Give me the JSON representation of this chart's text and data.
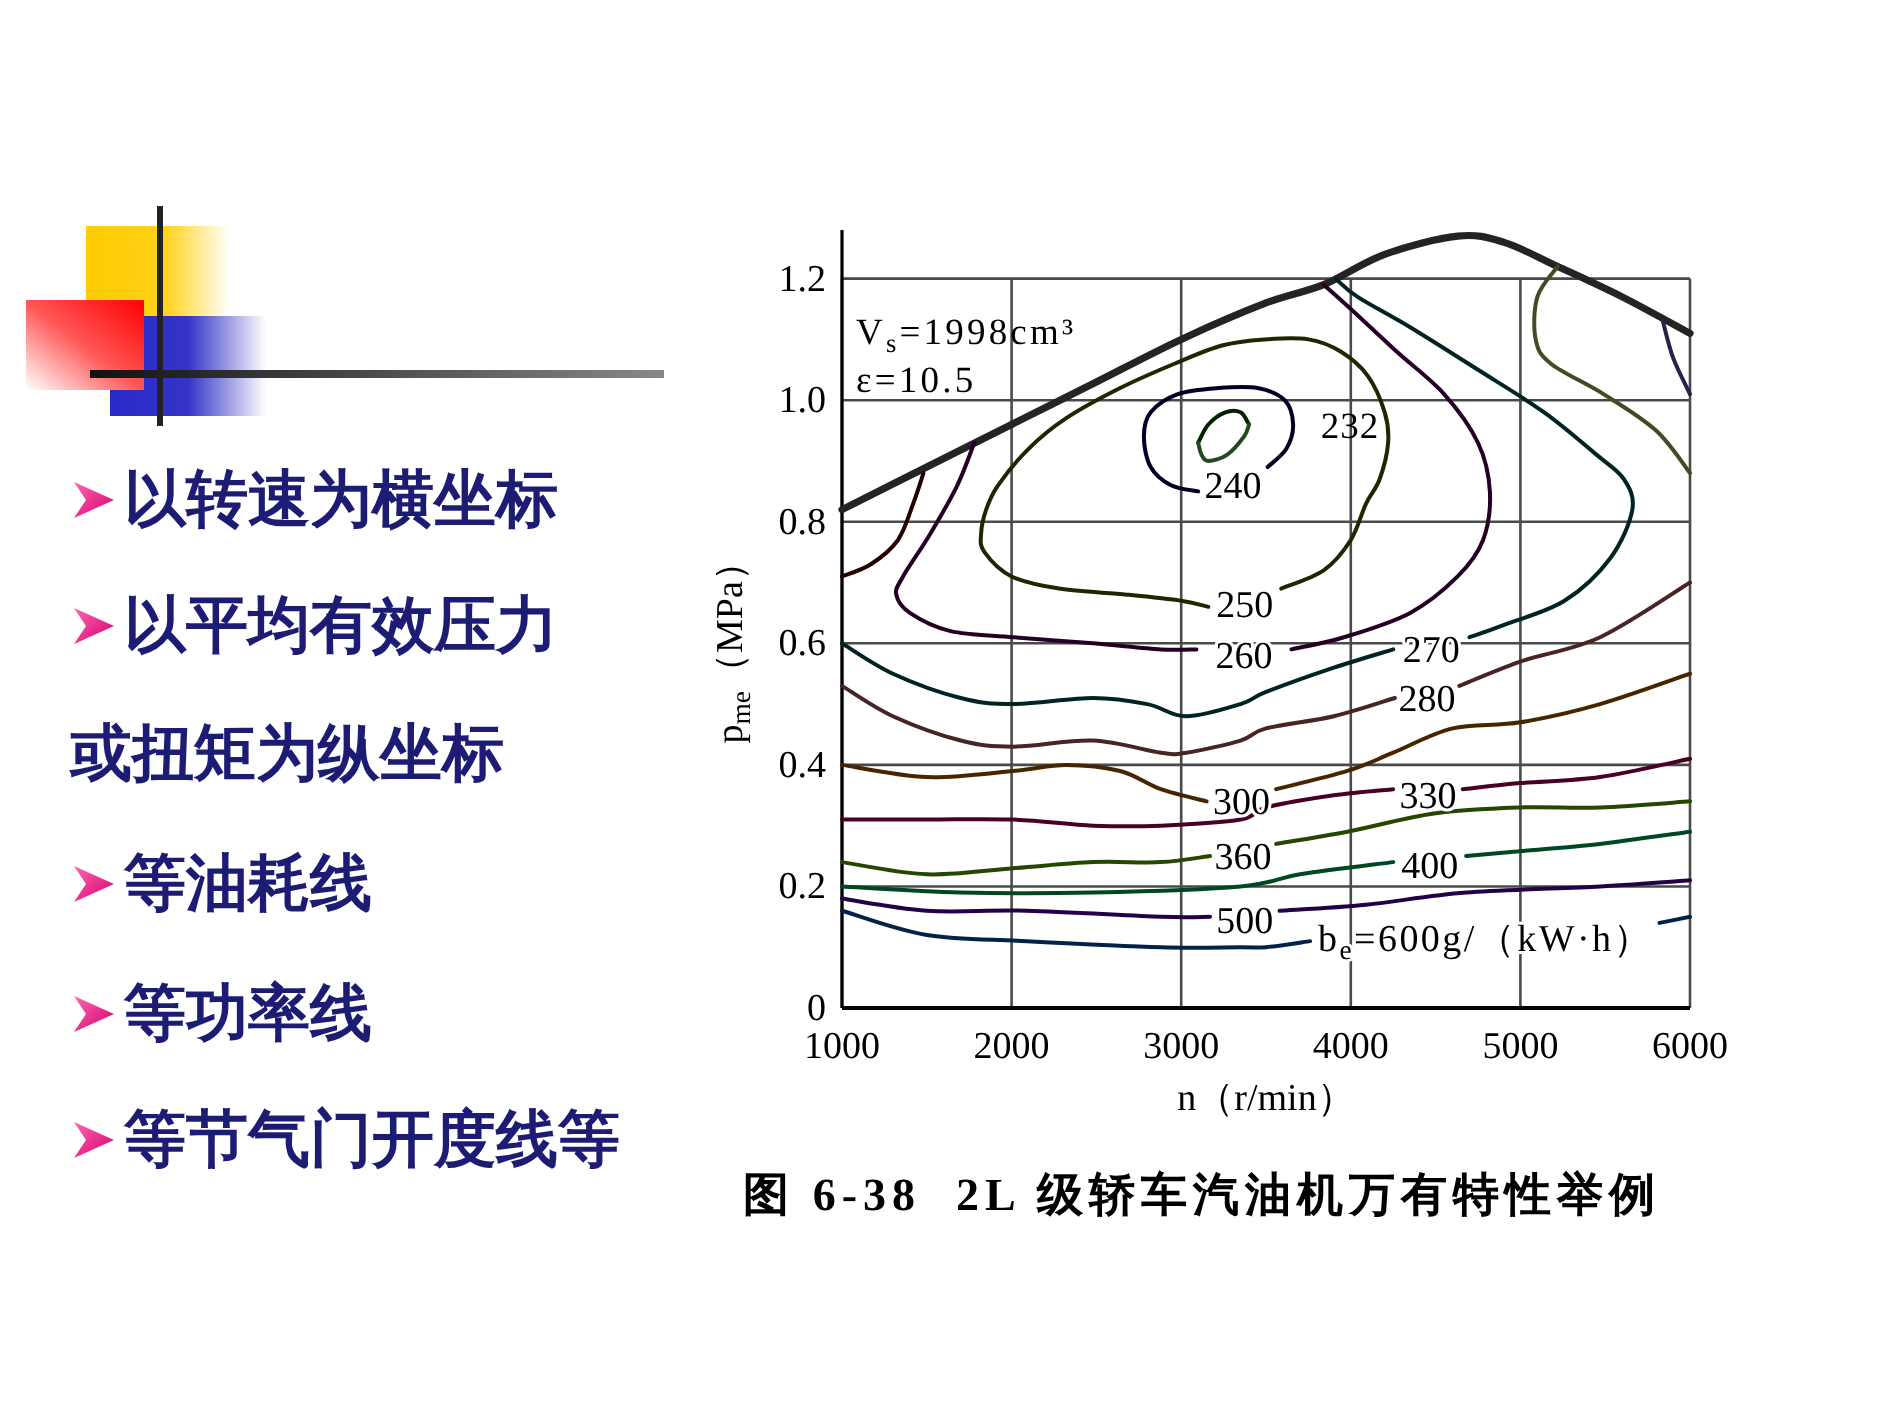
{
  "chart_data": {
    "type": "line",
    "xlabel": "n（r/min）",
    "ylabel": "p$_{me}$（MPa）",
    "xlim": [
      1000,
      6000
    ],
    "ylim": [
      0,
      1.28
    ],
    "xticks": [
      1000,
      2000,
      3000,
      4000,
      5000,
      6000
    ],
    "yticks": [
      0,
      0.2,
      0.4,
      0.6,
      0.8,
      {
        "value": 1,
        "label": "1.0"
      },
      1.2
    ],
    "grid": true,
    "annotations": [
      "以转速为横坐标",
      "以平均有效压力或扭矩为纵坐标",
      "等油耗线",
      "等功率线",
      "等节气门开度线等",
      "V$_{s}$=1998cm³",
      "ε=10.5",
      "232",
      "图 6-38  2L 级轿车汽油机万有特性举例"
    ],
    "series": [
      {
        "color": "#242424",
        "x": [
          1000,
          1500,
          2000,
          2500,
          3000,
          3500,
          3840,
          4200,
          4630,
          4900,
          5220,
          5600,
          6000
        ],
        "values": [
          0.82,
          0.89,
          0.96,
          1.03,
          1.1,
          1.16,
          1.19,
          1.24,
          1.27,
          1.26,
          1.22,
          1.17,
          1.11
        ]
      },
      {
        "color": "#240000",
        "x": [
          1480,
          1420,
          1330,
          1170,
          1000
        ],
        "values": [
          0.88,
          0.83,
          0.77,
          0.73,
          0.71
        ]
      },
      {
        "color": "#002400",
        "x": [
          3100,
          3160,
          3260,
          3350,
          3400
        ],
        "values": [
          0.93,
          0.96,
          0.98,
          0.98,
          0.96
        ]
      },
      {
        "color": "#244824",
        "x": [
          3400,
          3370,
          3270,
          3160,
          3120,
          3100
        ],
        "values": [
          0.96,
          0.94,
          0.91,
          0.9,
          0.91,
          0.93
        ]
      },
      {
        "name": "240",
        "color": "#000024",
        "x": [
          3510,
          3620,
          3660,
          3610,
          3450,
          3220,
          2980,
          2820,
          2780,
          2820,
          2940,
          3100
        ],
        "values": [
          0.89,
          0.92,
          0.96,
          1.0,
          1.02,
          1.02,
          1.01,
          0.98,
          0.94,
          0.89,
          0.86,
          0.85
        ]
      },
      {
        "name": "250",
        "color": "#242400",
        "x": [
          3590,
          3840,
          4000,
          4090,
          4170,
          4220,
          4200,
          4100,
          3940,
          3750,
          3490,
          3240,
          2960,
          2640,
          2320,
          2100,
          1920,
          1850,
          1820,
          1840,
          2000,
          2280,
          2680,
          3000,
          3160
        ],
        "values": [
          0.69,
          0.72,
          0.77,
          0.83,
          0.87,
          0.93,
          0.98,
          1.04,
          1.08,
          1.1,
          1.1,
          1.09,
          1.06,
          1.02,
          0.97,
          0.92,
          0.86,
          0.82,
          0.78,
          0.75,
          0.71,
          0.69,
          0.68,
          0.67,
          0.66
        ]
      },
      {
        "name": "260",
        "color": "#240024",
        "x": [
          1780,
          1680,
          1520,
          1360,
          1320,
          1400,
          1640,
          2010,
          2480,
          2880,
          3090,
          null,
          3650,
          3960,
          4350,
          4630,
          4780,
          4820,
          4750,
          4550,
          4270,
          4000,
          3840
        ],
        "values": [
          0.93,
          0.86,
          0.78,
          0.71,
          0.68,
          0.65,
          0.62,
          0.61,
          0.6,
          0.59,
          0.59,
          null,
          0.59,
          0.61,
          0.65,
          0.71,
          0.77,
          0.85,
          0.93,
          1.01,
          1.08,
          1.15,
          1.19
        ]
      },
      {
        "name": "270",
        "color": "#002424",
        "x": [
          1000,
          1300,
          1700,
          2010,
          2480,
          2800,
          3030,
          3350,
          3500,
          3900,
          4250,
          null,
          4700,
          4900,
          5260,
          5530,
          5660,
          5610,
          5450,
          5140,
          4750,
          4350,
          4040,
          3910
        ],
        "values": [
          0.6,
          0.55,
          0.51,
          0.5,
          0.51,
          0.5,
          0.48,
          0.5,
          0.52,
          0.56,
          0.59,
          null,
          0.61,
          0.63,
          0.67,
          0.74,
          0.82,
          0.87,
          0.91,
          0.98,
          1.05,
          1.12,
          1.17,
          1.2
        ]
      },
      {
        "name": "280",
        "color": "#482424",
        "x": [
          1000,
          1300,
          1700,
          2010,
          2480,
          2880,
          3030,
          3350,
          3500,
          3900,
          4260,
          null,
          4640,
          5000,
          5470,
          6000
        ],
        "values": [
          0.53,
          0.48,
          0.44,
          0.43,
          0.44,
          0.42,
          0.42,
          0.44,
          0.46,
          0.48,
          0.51,
          null,
          0.53,
          0.57,
          0.61,
          0.7
        ]
      },
      {
        "color": "#484824",
        "x": [
          5220,
          5100,
          5090,
          5180,
          5490,
          5800,
          6000
        ],
        "values": [
          1.22,
          1.17,
          1.1,
          1.06,
          1.01,
          0.95,
          0.88
        ]
      },
      {
        "color": "#242448",
        "x": [
          5840,
          5900,
          6000
        ],
        "values": [
          1.13,
          1.07,
          1.01
        ]
      },
      {
        "name": "300",
        "color": "#482400",
        "x": [
          1000,
          1500,
          2010,
          2320,
          2640,
          2880,
          3150,
          null,
          3560,
          3980,
          4250,
          4600,
          5000,
          5470,
          6000
        ],
        "values": [
          0.4,
          0.38,
          0.39,
          0.4,
          0.39,
          0.36,
          0.34,
          null,
          0.36,
          0.39,
          0.42,
          0.46,
          0.47,
          0.5,
          0.55
        ]
      },
      {
        "name": "330",
        "color": "#480024",
        "x": [
          1000,
          1500,
          2010,
          2480,
          2880,
          3350,
          3500,
          3900,
          4250,
          null,
          4660,
          5000,
          5470,
          6000
        ],
        "values": [
          0.31,
          0.31,
          0.31,
          0.3,
          0.3,
          0.31,
          0.33,
          0.35,
          0.36,
          null,
          0.36,
          0.37,
          0.38,
          0.41
        ]
      },
      {
        "name": "360",
        "color": "#244800",
        "x": [
          1000,
          1500,
          2010,
          2480,
          2880,
          3170,
          null,
          3560,
          3980,
          4490,
          5000,
          5470,
          6000
        ],
        "values": [
          0.24,
          0.22,
          0.23,
          0.24,
          0.24,
          0.25,
          null,
          0.27,
          0.29,
          0.32,
          0.33,
          0.33,
          0.34
        ]
      },
      {
        "name": "400",
        "color": "#004824",
        "x": [
          1000,
          1700,
          2480,
          3350,
          3700,
          4250,
          null,
          4680,
          5080,
          5470,
          6000
        ],
        "values": [
          0.2,
          0.19,
          0.19,
          0.2,
          0.22,
          0.24,
          null,
          0.25,
          0.26,
          0.27,
          0.29
        ]
      },
      {
        "name": "500",
        "color": "#240048",
        "x": [
          1000,
          1500,
          2090,
          2880,
          3170,
          null,
          3580,
          4090,
          4680,
          5470,
          6000
        ],
        "values": [
          0.18,
          0.16,
          0.16,
          0.15,
          0.15,
          null,
          0.16,
          0.17,
          0.19,
          0.2,
          0.21
        ]
      },
      {
        "name": "b$_{e}$=600g/（kW·h）",
        "color": "#002448",
        "x": [
          1000,
          1500,
          2090,
          2880,
          3350,
          3500,
          3760,
          null,
          5820,
          6000
        ],
        "values": [
          0.16,
          0.12,
          0.11,
          0.1,
          0.1,
          0.1,
          0.11,
          null,
          0.14,
          0.15
        ]
      }
    ]
  }
}
